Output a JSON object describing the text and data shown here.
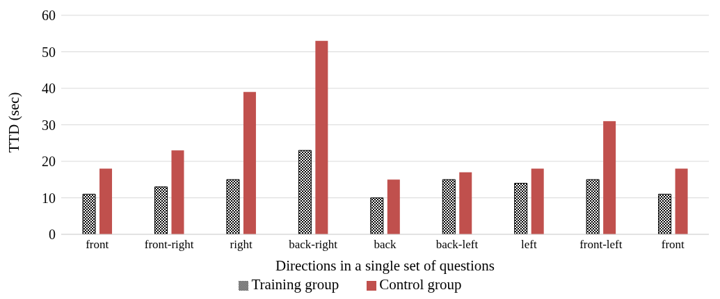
{
  "chart_data": {
    "type": "bar",
    "xlabel": "Directions in a single set of questions",
    "ylabel": "TTD (sec)",
    "categories": [
      "front",
      "front-right",
      "right",
      "back-right",
      "back",
      "back-left",
      "left",
      "front-left",
      "front"
    ],
    "series": [
      {
        "name": "Training group",
        "color": "#000000",
        "values": [
          11,
          13,
          15,
          23,
          10,
          15,
          14,
          15,
          11
        ]
      },
      {
        "name": "Control group",
        "color": "#c0504d",
        "values": [
          18,
          23,
          39,
          53,
          15,
          17,
          18,
          31,
          18
        ]
      }
    ],
    "ylim": [
      0,
      60
    ],
    "yticks": [
      0,
      10,
      20,
      30,
      40,
      50,
      60
    ],
    "grid": "y",
    "legend": "bottom"
  }
}
